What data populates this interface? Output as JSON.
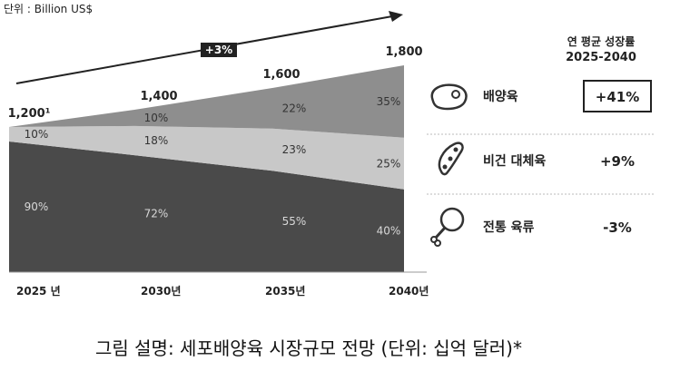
{
  "unit_label": "단위 : Billion US$",
  "trend_label": "+3%",
  "cagr_header": [
    "연 평균 성장률",
    "2025-2040"
  ],
  "chart_data": {
    "type": "area",
    "x": [
      "2025 년",
      "2030년",
      "2035년",
      "2040년"
    ],
    "totals": [
      "1,200¹",
      "1,400",
      "1,600",
      "1,800"
    ],
    "total_values": [
      1200,
      1400,
      1600,
      1800
    ],
    "series": [
      {
        "name": "전통 육류",
        "share": [
          90,
          72,
          55,
          40
        ],
        "labels": [
          "90%",
          "72%",
          "55%",
          "40%"
        ],
        "color": "#4a4a4a",
        "cagr": "-3%",
        "icon": "drumstick-icon"
      },
      {
        "name": "비건 대체육",
        "share": [
          10,
          18,
          23,
          25
        ],
        "labels": [
          "10%",
          "18%",
          "23%",
          "25%"
        ],
        "color": "#c8c8c8",
        "cagr": "+9%",
        "icon": "soybean-icon"
      },
      {
        "name": "배양육",
        "share": [
          0,
          10,
          22,
          35
        ],
        "labels": [
          "",
          "10%",
          "22%",
          "35%"
        ],
        "color": "#8e8e8e",
        "cagr": "+41%",
        "icon": "steak-icon"
      }
    ]
  },
  "caption": "그림 설명: 세포배양육 시장규모 전망 (단위: 십억 달러)*"
}
